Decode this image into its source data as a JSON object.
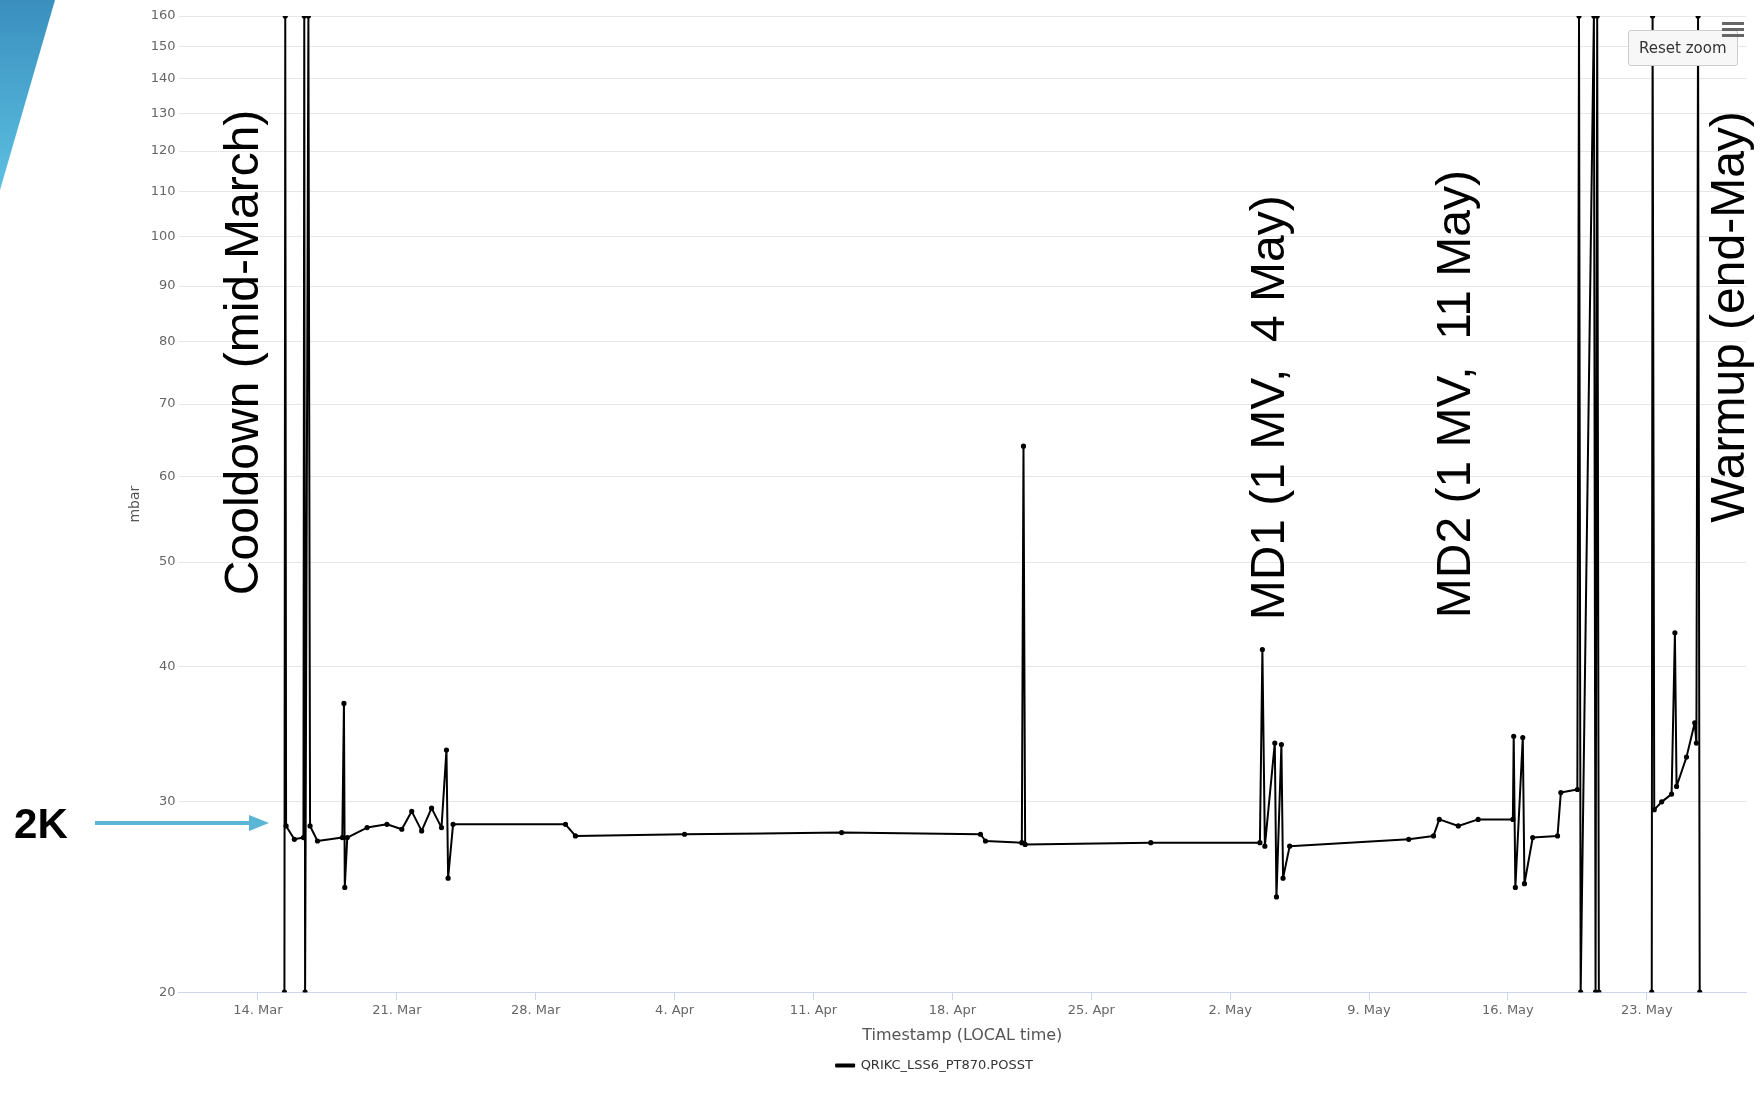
{
  "chart_data": {
    "type": "line",
    "xlabel": "Timestamp (LOCAL time)",
    "ylabel": "mbar",
    "log": "y",
    "grid": "y",
    "legend": "bottom",
    "marker": "circle",
    "line_style": "solid",
    "xlim": [
      "--03-10",
      "--05-28"
    ],
    "xticks": [
      {
        "value": "--03-14",
        "label": "14. Mar"
      },
      {
        "value": "--03-21",
        "label": "21. Mar"
      },
      {
        "value": "--03-28",
        "label": "28. Mar"
      },
      {
        "value": "--04-04",
        "label": "4. Apr"
      },
      {
        "value": "--04-11",
        "label": "11. Apr"
      },
      {
        "value": "--04-18",
        "label": "18. Apr"
      },
      {
        "value": "--04-25",
        "label": "25. Apr"
      },
      {
        "value": "--05-02",
        "label": "2. May"
      },
      {
        "value": "--05-09",
        "label": "9. May"
      },
      {
        "value": "--05-16",
        "label": "16. May"
      },
      {
        "value": "--05-23",
        "label": "23. May"
      }
    ],
    "ylim": [
      20,
      160
    ],
    "yticks": [
      20,
      30,
      40,
      50,
      60,
      70,
      80,
      90,
      100,
      110,
      120,
      130,
      140,
      150,
      160
    ],
    "series": [
      {
        "name": "QRIKC_LSS6_PT870.POSST",
        "color": "#000000",
        "x": [
          "--03-15T08:00",
          "--03-15T09:00",
          "--03-15T10:00",
          "--03-15T20:00",
          "--03-16T07:00",
          "--03-16T08:00",
          "--03-16T09:00",
          "--03-16T13:00",
          "--03-16T15:00",
          "--03-17T00:00",
          "--03-18T06:00",
          "--03-18T08:00",
          "--03-18T09:00",
          "--03-18T12:00",
          "--03-19T12:00",
          "--03-20T12:00",
          "--03-21T06:00",
          "--03-21T18:00",
          "--03-22T06:00",
          "--03-22T18:00",
          "--03-23T06:00",
          "--03-23T12:00",
          "--03-23T14:00",
          "--03-23T20:00",
          "--03-29T12:00",
          "--03-30T00:00",
          "--04-04T12:00",
          "--04-12T10:00",
          "--04-19T10:00",
          "--04-19T16:00",
          "--04-21T12:00",
          "--04-21T14:00",
          "--04-21T16:00",
          "--04-28T00:00",
          "--05-03T12:00",
          "--05-03T15:00",
          "--05-03T18:00",
          "--05-04T06:00",
          "--05-04T08:00",
          "--05-04T14:00",
          "--05-04T16:00",
          "--05-05T00:00",
          "--05-11T00:00",
          "--05-12T06:00",
          "--05-12T13:00",
          "--05-13T12:00",
          "--05-14T12:00",
          "--05-16T06:00",
          "--05-16T07:00",
          "--05-16T09:00",
          "--05-16T18:00",
          "--05-16T20:00",
          "--05-17T06:00",
          "--05-18T12:00",
          "--05-18T16:00",
          "--05-19T12:00",
          "--05-19T14:00",
          "--05-19T16:00",
          "--05-20T08:00",
          "--05-20T10:00",
          "--05-20T12:00",
          "--05-20T14:00",
          "--05-21T12:00",
          "--05-23T06:00",
          "--05-23T07:00",
          "--05-23T09:00",
          "--05-23T18:00",
          "--05-24T06:00",
          "--05-24T10:00",
          "--05-24T12:00",
          "--05-25T00:00",
          "--05-25T10:00",
          "--05-25T12:00",
          "--05-25T14:00",
          "--05-25T16:00"
        ],
        "values": [
          20,
          160,
          28.5,
          27.7,
          27.8,
          160,
          20,
          160,
          28.5,
          27.6,
          27.8,
          37,
          25,
          27.8,
          28.4,
          28.6,
          28.3,
          29.4,
          28.2,
          29.6,
          28.4,
          33.5,
          25.5,
          28.6,
          28.6,
          27.9,
          28,
          28.1,
          28,
          27.6,
          27.5,
          64,
          27.4,
          27.5,
          27.5,
          41.5,
          27.3,
          34,
          24.5,
          33.9,
          25.5,
          27.3,
          27.7,
          27.9,
          28.9,
          28.5,
          28.9,
          28.9,
          34.5,
          25,
          34.4,
          25.2,
          27.8,
          27.9,
          30.6,
          30.8,
          160,
          20,
          160,
          20,
          160,
          20,
          null,
          20,
          160,
          29.5,
          30,
          30.5,
          43,
          31,
          33,
          35.5,
          34,
          160,
          20
        ]
      }
    ],
    "annotations": [
      "Cooldown (mid-March)",
      "MD1 (1 MV,  4 May)",
      "MD2 (1 MV,  11 May)",
      "Warmup (end-May)",
      "2K",
      "Reset zoom"
    ]
  }
}
